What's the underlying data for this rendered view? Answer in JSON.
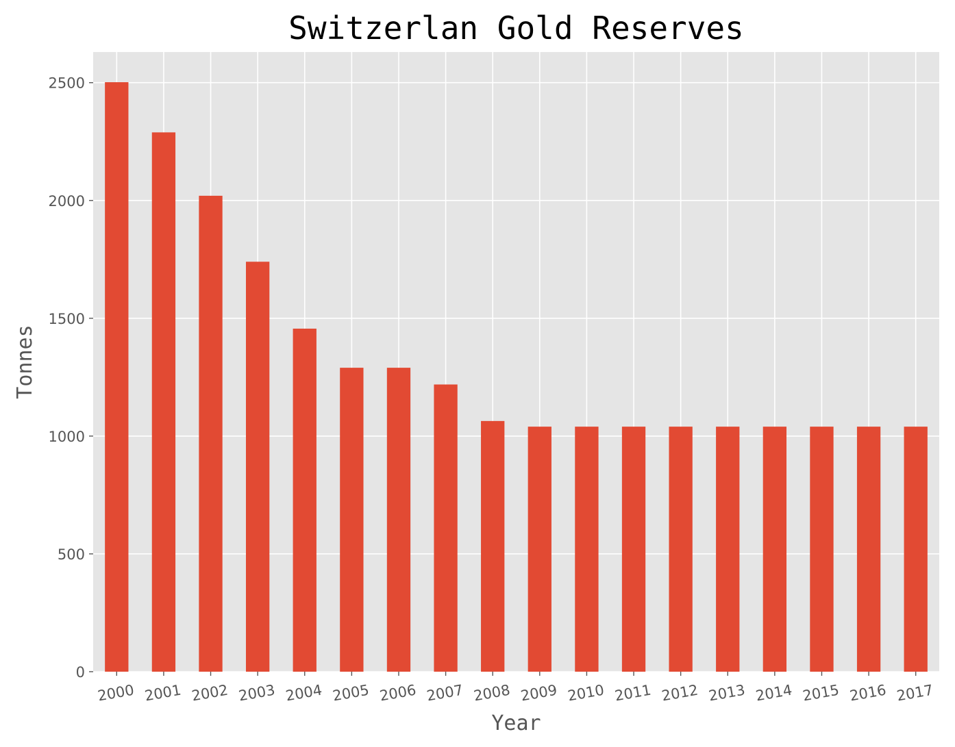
{
  "chart_data": {
    "type": "bar",
    "title": "Switzerlan Gold Reserves",
    "xlabel": "Year",
    "ylabel": "Tonnes",
    "categories": [
      "2000",
      "2001",
      "2002",
      "2003",
      "2004",
      "2005",
      "2006",
      "2007",
      "2008",
      "2009",
      "2010",
      "2011",
      "2012",
      "2013",
      "2014",
      "2015",
      "2016",
      "2017"
    ],
    "values": [
      2502,
      2289,
      2020,
      1740,
      1456,
      1290,
      1290,
      1219,
      1064,
      1040,
      1040,
      1040,
      1040,
      1040,
      1040,
      1040,
      1040,
      1040
    ],
    "ylim": [
      0,
      2630
    ],
    "yticks": [
      0,
      500,
      1000,
      1500,
      2000,
      2500
    ],
    "grid": true,
    "legend": "none",
    "colors": {
      "bar": "#E24A33",
      "plot_background": "#E5E5E5",
      "grid": "#FFFFFF",
      "tick_text": "#555555",
      "title_text": "#000000"
    }
  }
}
